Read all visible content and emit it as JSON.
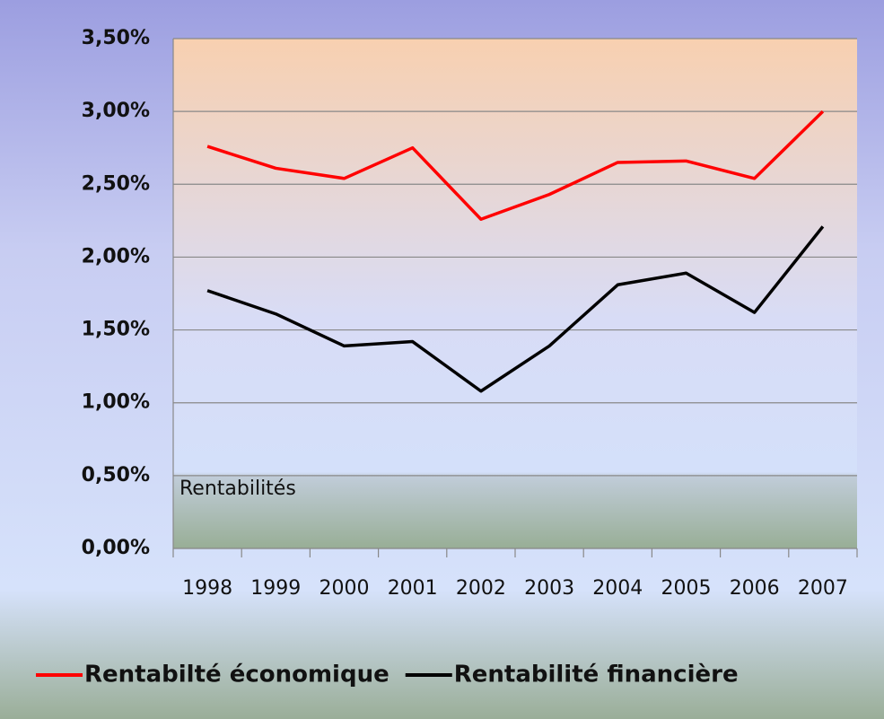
{
  "chart_data": {
    "type": "line",
    "annotation": "Rentabilités",
    "categories": [
      "1998",
      "1999",
      "2000",
      "2001",
      "2002",
      "2003",
      "2004",
      "2005",
      "2006",
      "2007"
    ],
    "series": [
      {
        "name": "Rentabilté économique",
        "color": "#ff0000",
        "values": [
          2.76,
          2.61,
          2.54,
          2.75,
          2.26,
          2.43,
          2.65,
          2.66,
          2.54,
          3.0
        ]
      },
      {
        "name": "Rentabilité financière",
        "color": "#000000",
        "values": [
          1.77,
          1.61,
          1.39,
          1.42,
          1.08,
          1.39,
          1.81,
          1.89,
          1.62,
          2.21
        ]
      }
    ],
    "ylim": [
      0,
      3.5
    ],
    "yticks": [
      {
        "value": 0,
        "label": "0,00%"
      },
      {
        "value": 0.5,
        "label": "0,50%"
      },
      {
        "value": 1,
        "label": "1,00%"
      },
      {
        "value": 1.5,
        "label": "1,50%"
      },
      {
        "value": 2,
        "label": "2,00%"
      },
      {
        "value": 2.5,
        "label": "2,50%"
      },
      {
        "value": 3,
        "label": "3,00%"
      },
      {
        "value": 3.5,
        "label": "3,50%"
      }
    ],
    "grid": true,
    "legend": "bottom"
  }
}
